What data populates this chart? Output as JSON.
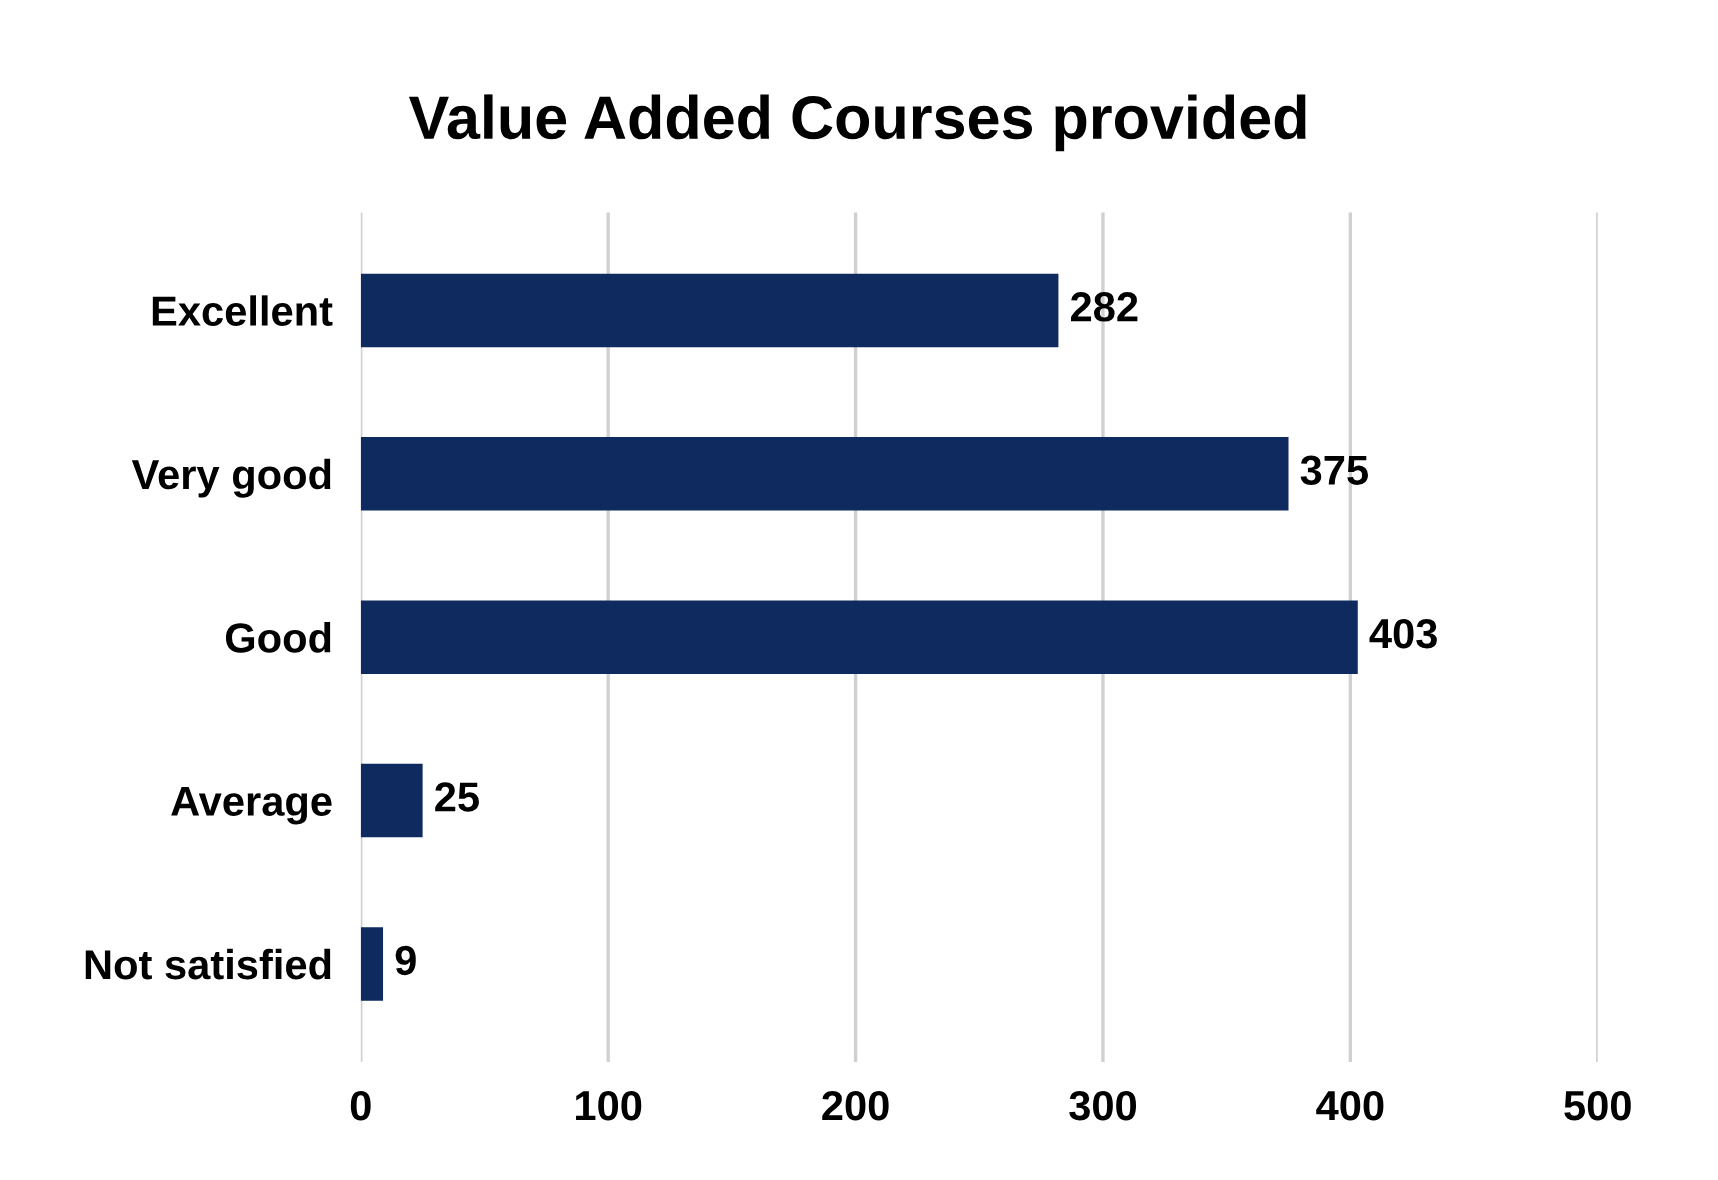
{
  "chart_data": {
    "type": "bar",
    "orientation": "horizontal",
    "title": "Value Added Courses provided",
    "categories": [
      "Excellent",
      "Very good",
      "Good",
      "Average",
      "Not satisfied"
    ],
    "values": [
      282,
      375,
      403,
      25,
      9
    ],
    "color": "#0f2a5e",
    "xlim": [
      0,
      500
    ],
    "xticks": [
      0,
      100,
      200,
      300,
      400,
      500
    ],
    "grid": "x",
    "data_labels": true
  }
}
